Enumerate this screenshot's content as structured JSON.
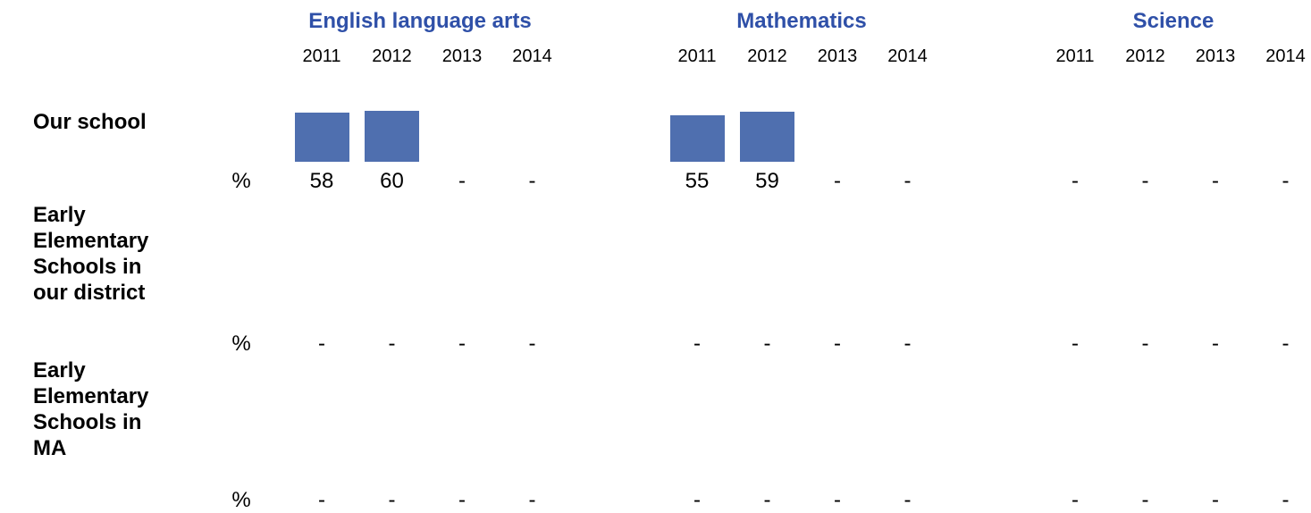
{
  "subjects": [
    {
      "name": "English language arts",
      "years": [
        "2011",
        "2012",
        "2013",
        "2014"
      ]
    },
    {
      "name": "Mathematics",
      "years": [
        "2011",
        "2012",
        "2013",
        "2014"
      ]
    },
    {
      "name": "Science",
      "years": [
        "2011",
        "2012",
        "2013",
        "2014"
      ]
    }
  ],
  "rows": [
    {
      "label": "Our school",
      "unit": "%",
      "values": [
        [
          58,
          60,
          "-",
          "-"
        ],
        [
          55,
          59,
          "-",
          "-"
        ],
        [
          "-",
          "-",
          "-",
          "-"
        ]
      ]
    },
    {
      "label": "Early Elementary Schools in our district",
      "unit": "%",
      "values": [
        [
          "-",
          "-",
          "-",
          "-"
        ],
        [
          "-",
          "-",
          "-",
          "-"
        ],
        [
          "-",
          "-",
          "-",
          "-"
        ]
      ]
    },
    {
      "label": "Early Elementary Schools in MA",
      "unit": "%",
      "values": [
        [
          "-",
          "-",
          "-",
          "-"
        ],
        [
          "-",
          "-",
          "-",
          "-"
        ],
        [
          "-",
          "-",
          "-",
          "-"
        ]
      ]
    }
  ],
  "bar_color": "#4f6faf"
}
